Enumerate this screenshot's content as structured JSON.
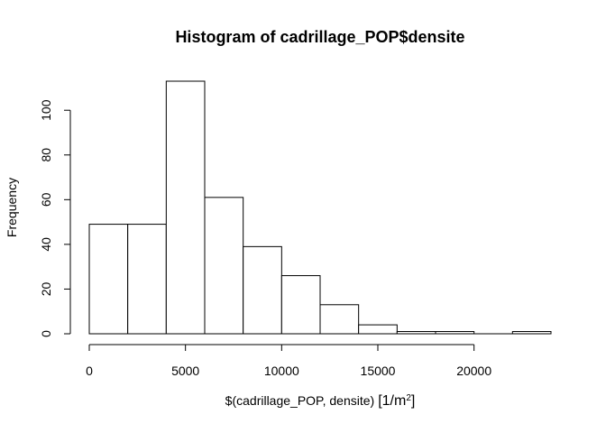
{
  "chart_data": {
    "type": "bar",
    "title": "Histogram of cadrillage_POP$densite",
    "xlabel_main": "$(cadrillage_POP, densite)",
    "xlabel_unit_open": "[1/m",
    "xlabel_unit_sup": "2",
    "xlabel_unit_close": "]",
    "ylabel": "Frequency",
    "bins": [
      {
        "start": 0,
        "end": 2000,
        "count": 49
      },
      {
        "start": 2000,
        "end": 4000,
        "count": 49
      },
      {
        "start": 4000,
        "end": 6000,
        "count": 113
      },
      {
        "start": 6000,
        "end": 8000,
        "count": 61
      },
      {
        "start": 8000,
        "end": 10000,
        "count": 39
      },
      {
        "start": 10000,
        "end": 12000,
        "count": 26
      },
      {
        "start": 12000,
        "end": 14000,
        "count": 13
      },
      {
        "start": 14000,
        "end": 16000,
        "count": 4
      },
      {
        "start": 16000,
        "end": 18000,
        "count": 1
      },
      {
        "start": 18000,
        "end": 20000,
        "count": 1
      },
      {
        "start": 20000,
        "end": 22000,
        "count": 0
      },
      {
        "start": 22000,
        "end": 24000,
        "count": 1
      }
    ],
    "xlim": [
      0,
      24000
    ],
    "ylim": [
      0,
      113
    ],
    "xticks": [
      0,
      5000,
      10000,
      15000,
      20000
    ],
    "yticks": [
      0,
      20,
      40,
      60,
      80,
      100
    ],
    "grid": false
  }
}
